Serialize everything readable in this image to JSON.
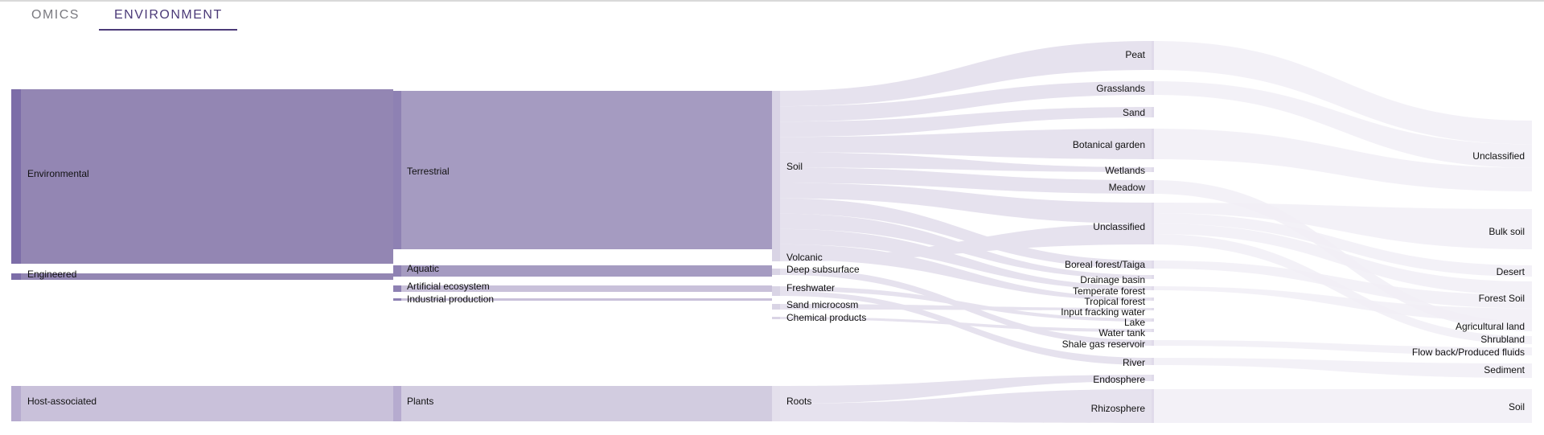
{
  "tabs": [
    {
      "label": "OMICS",
      "active": false
    },
    {
      "label": "ENVIRONMENT",
      "active": true
    }
  ],
  "colors": {
    "accent": "#4b3a78",
    "level1_environmental": "#9488b4",
    "level1_engineered": "#9488b4",
    "level1_host": "#c8bfd8",
    "level2": "#a59cc1",
    "level3": "#d6d0e2",
    "level4": "#e4e0ec",
    "level5": "#f0eef5"
  },
  "sankey": {
    "columns": [
      {
        "nodes": [
          {
            "id": "environmental",
            "label": "Environmental"
          },
          {
            "id": "engineered",
            "label": "Engineered"
          },
          {
            "id": "host_associated",
            "label": "Host-associated"
          }
        ]
      },
      {
        "nodes": [
          {
            "id": "terrestrial",
            "label": "Terrestrial"
          },
          {
            "id": "aquatic",
            "label": "Aquatic"
          },
          {
            "id": "artificial_ecosystem",
            "label": "Artificial ecosystem"
          },
          {
            "id": "industrial_production",
            "label": "Industrial production"
          },
          {
            "id": "plants",
            "label": "Plants"
          }
        ]
      },
      {
        "nodes": [
          {
            "id": "soil",
            "label": "Soil"
          },
          {
            "id": "volcanic",
            "label": "Volcanic"
          },
          {
            "id": "deep_subsurface",
            "label": "Deep subsurface"
          },
          {
            "id": "freshwater",
            "label": "Freshwater"
          },
          {
            "id": "sand_microcosm",
            "label": "Sand microcosm"
          },
          {
            "id": "chemical_products",
            "label": "Chemical products"
          },
          {
            "id": "roots",
            "label": "Roots"
          }
        ]
      },
      {
        "nodes": [
          {
            "id": "peat",
            "label": "Peat"
          },
          {
            "id": "grasslands",
            "label": "Grasslands"
          },
          {
            "id": "sand",
            "label": "Sand"
          },
          {
            "id": "botanical_garden",
            "label": "Botanical garden"
          },
          {
            "id": "wetlands",
            "label": "Wetlands"
          },
          {
            "id": "meadow",
            "label": "Meadow"
          },
          {
            "id": "unclassified_l4",
            "label": "Unclassified"
          },
          {
            "id": "boreal_forest",
            "label": "Boreal forest/Taiga"
          },
          {
            "id": "drainage_basin",
            "label": "Drainage basin"
          },
          {
            "id": "temperate_forest",
            "label": "Temperate forest"
          },
          {
            "id": "tropical_forest",
            "label": "Tropical forest"
          },
          {
            "id": "input_fracking_water",
            "label": "Input fracking water"
          },
          {
            "id": "lake",
            "label": "Lake"
          },
          {
            "id": "water_tank",
            "label": "Water tank"
          },
          {
            "id": "shale_gas_reservoir",
            "label": "Shale gas reservoir"
          },
          {
            "id": "river",
            "label": "River"
          },
          {
            "id": "endosphere",
            "label": "Endosphere"
          },
          {
            "id": "rhizosphere",
            "label": "Rhizosphere"
          }
        ]
      },
      {
        "nodes": [
          {
            "id": "unclassified_l5",
            "label": "Unclassified"
          },
          {
            "id": "bulk_soil",
            "label": "Bulk soil"
          },
          {
            "id": "desert",
            "label": "Desert"
          },
          {
            "id": "forest_soil",
            "label": "Forest Soil"
          },
          {
            "id": "agricultural_land",
            "label": "Agricultural land"
          },
          {
            "id": "shrubland",
            "label": "Shrubland"
          },
          {
            "id": "flow_back",
            "label": "Flow back/Produced fluids"
          },
          {
            "id": "sediment",
            "label": "Sediment"
          },
          {
            "id": "soil_l5",
            "label": "Soil"
          }
        ]
      }
    ],
    "links": [
      {
        "source": "environmental",
        "target": "terrestrial"
      },
      {
        "source": "environmental",
        "target": "aquatic"
      },
      {
        "source": "engineered",
        "target": "artificial_ecosystem"
      },
      {
        "source": "engineered",
        "target": "industrial_production"
      },
      {
        "source": "host_associated",
        "target": "plants"
      },
      {
        "source": "terrestrial",
        "target": "soil"
      },
      {
        "source": "terrestrial",
        "target": "volcanic"
      },
      {
        "source": "terrestrial",
        "target": "deep_subsurface"
      },
      {
        "source": "aquatic",
        "target": "freshwater"
      },
      {
        "source": "artificial_ecosystem",
        "target": "sand_microcosm"
      },
      {
        "source": "industrial_production",
        "target": "chemical_products"
      },
      {
        "source": "plants",
        "target": "roots"
      },
      {
        "source": "soil",
        "target": "peat"
      },
      {
        "source": "soil",
        "target": "grasslands"
      },
      {
        "source": "soil",
        "target": "sand"
      },
      {
        "source": "soil",
        "target": "botanical_garden"
      },
      {
        "source": "soil",
        "target": "wetlands"
      },
      {
        "source": "soil",
        "target": "meadow"
      },
      {
        "source": "soil",
        "target": "unclassified_l4"
      },
      {
        "source": "soil",
        "target": "boreal_forest"
      },
      {
        "source": "soil",
        "target": "drainage_basin"
      },
      {
        "source": "soil",
        "target": "temperate_forest"
      },
      {
        "source": "soil",
        "target": "tropical_forest"
      },
      {
        "source": "volcanic",
        "target": "unclassified_l4"
      },
      {
        "source": "deep_subsurface",
        "target": "shale_gas_reservoir"
      },
      {
        "source": "freshwater",
        "target": "lake"
      },
      {
        "source": "freshwater",
        "target": "river"
      },
      {
        "source": "sand_microcosm",
        "target": "input_fracking_water"
      },
      {
        "source": "chemical_products",
        "target": "water_tank"
      },
      {
        "source": "roots",
        "target": "endosphere"
      },
      {
        "source": "roots",
        "target": "rhizosphere"
      },
      {
        "source": "peat",
        "target": "unclassified_l5"
      },
      {
        "source": "grasslands",
        "target": "unclassified_l5"
      },
      {
        "source": "botanical_garden",
        "target": "unclassified_l5"
      },
      {
        "source": "unclassified_l4",
        "target": "bulk_soil"
      },
      {
        "source": "unclassified_l4",
        "target": "desert"
      },
      {
        "source": "unclassified_l4",
        "target": "forest_soil"
      },
      {
        "source": "boreal_forest",
        "target": "forest_soil"
      },
      {
        "source": "temperate_forest",
        "target": "forest_soil"
      },
      {
        "source": "meadow",
        "target": "agricultural_land"
      },
      {
        "source": "unclassified_l4",
        "target": "shrubland"
      },
      {
        "source": "shale_gas_reservoir",
        "target": "flow_back"
      },
      {
        "source": "river",
        "target": "sediment"
      },
      {
        "source": "rhizosphere",
        "target": "soil_l5"
      }
    ]
  }
}
